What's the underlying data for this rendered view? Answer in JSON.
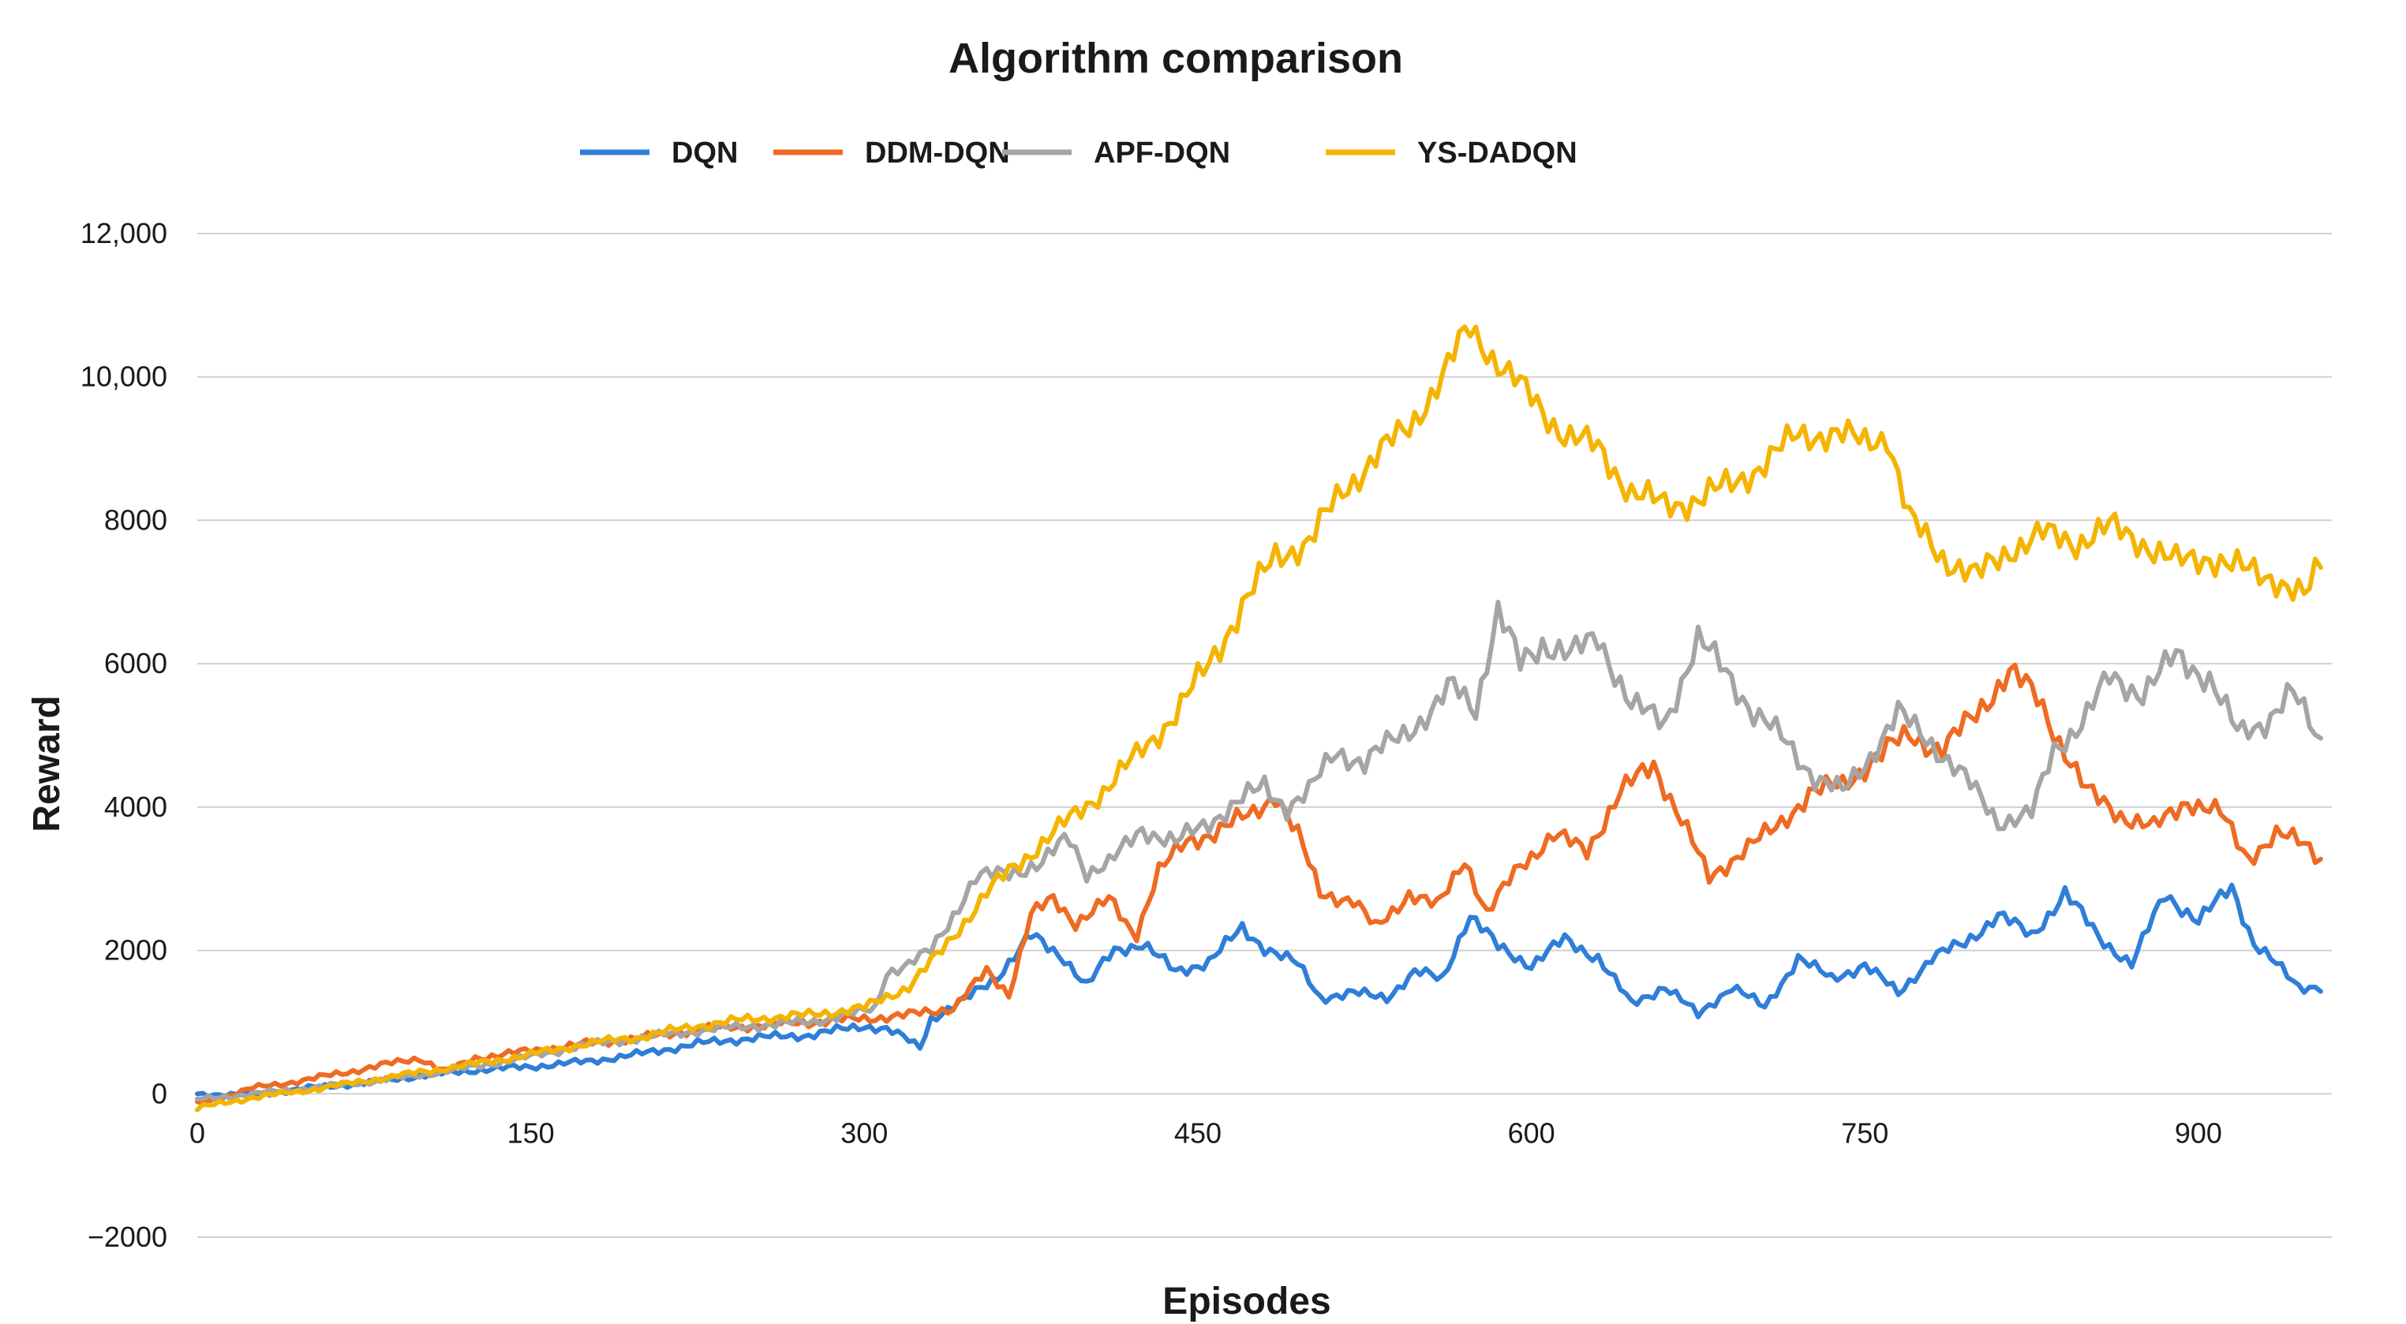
{
  "chart_data": {
    "type": "line",
    "title": "Algorithm comparison",
    "xlabel": "Episodes",
    "ylabel": "Reward",
    "xlim": [
      0,
      960
    ],
    "ylim": [
      -2000,
      12000
    ],
    "x_ticks": [
      0,
      150,
      300,
      450,
      600,
      750,
      900
    ],
    "x_tick_labels": [
      "0",
      "150",
      "300",
      "450",
      "600",
      "750",
      "900"
    ],
    "y_ticks": [
      -2000,
      0,
      2000,
      4000,
      6000,
      8000,
      10000,
      12000
    ],
    "y_tick_labels": [
      "−2000",
      "0",
      "2000",
      "4000",
      "6000",
      "8000",
      "10,000",
      "12,000"
    ],
    "grid": true,
    "legend_position": "top-center",
    "series": [
      {
        "name": "DQN",
        "color": "#2f7ed8",
        "points": [
          [
            0,
            0
          ],
          [
            25,
            -20
          ],
          [
            50,
            80
          ],
          [
            75,
            150
          ],
          [
            100,
            250
          ],
          [
            125,
            330
          ],
          [
            150,
            380
          ],
          [
            175,
            450
          ],
          [
            200,
            560
          ],
          [
            225,
            700
          ],
          [
            250,
            780
          ],
          [
            275,
            820
          ],
          [
            300,
            950
          ],
          [
            310,
            900
          ],
          [
            318,
            780
          ],
          [
            325,
            650
          ],
          [
            330,
            1050
          ],
          [
            345,
            1300
          ],
          [
            360,
            1650
          ],
          [
            375,
            2200
          ],
          [
            390,
            1900
          ],
          [
            400,
            1500
          ],
          [
            412,
            2000
          ],
          [
            425,
            2100
          ],
          [
            440,
            1700
          ],
          [
            455,
            1850
          ],
          [
            470,
            2300
          ],
          [
            480,
            2050
          ],
          [
            495,
            1800
          ],
          [
            505,
            1350
          ],
          [
            520,
            1400
          ],
          [
            535,
            1350
          ],
          [
            548,
            1700
          ],
          [
            560,
            1600
          ],
          [
            572,
            2500
          ],
          [
            585,
            2050
          ],
          [
            600,
            1800
          ],
          [
            615,
            2150
          ],
          [
            630,
            1900
          ],
          [
            645,
            1250
          ],
          [
            660,
            1500
          ],
          [
            675,
            1100
          ],
          [
            690,
            1500
          ],
          [
            705,
            1200
          ],
          [
            720,
            1900
          ],
          [
            735,
            1600
          ],
          [
            750,
            1800
          ],
          [
            765,
            1400
          ],
          [
            780,
            1900
          ],
          [
            795,
            2100
          ],
          [
            810,
            2500
          ],
          [
            825,
            2200
          ],
          [
            840,
            2800
          ],
          [
            855,
            2200
          ],
          [
            870,
            1800
          ],
          [
            885,
            2800
          ],
          [
            900,
            2400
          ],
          [
            915,
            2900
          ],
          [
            925,
            2100
          ],
          [
            935,
            1800
          ],
          [
            945,
            1500
          ],
          [
            955,
            1500
          ]
        ]
      },
      {
        "name": "DDM-DQN",
        "color": "#ee6b23",
        "points": [
          [
            0,
            -150
          ],
          [
            25,
            80
          ],
          [
            50,
            200
          ],
          [
            75,
            350
          ],
          [
            100,
            500
          ],
          [
            112,
            300
          ],
          [
            125,
            500
          ],
          [
            150,
            600
          ],
          [
            175,
            700
          ],
          [
            200,
            780
          ],
          [
            225,
            900
          ],
          [
            250,
            950
          ],
          [
            275,
            1000
          ],
          [
            300,
            1050
          ],
          [
            320,
            1100
          ],
          [
            340,
            1200
          ],
          [
            355,
            1700
          ],
          [
            365,
            1400
          ],
          [
            375,
            2500
          ],
          [
            385,
            2700
          ],
          [
            395,
            2400
          ],
          [
            410,
            2700
          ],
          [
            422,
            2200
          ],
          [
            432,
            3100
          ],
          [
            445,
            3500
          ],
          [
            460,
            3700
          ],
          [
            475,
            3900
          ],
          [
            485,
            4200
          ],
          [
            495,
            3600
          ],
          [
            505,
            2800
          ],
          [
            520,
            2700
          ],
          [
            530,
            2300
          ],
          [
            545,
            2800
          ],
          [
            558,
            2600
          ],
          [
            570,
            3300
          ],
          [
            580,
            2500
          ],
          [
            595,
            3200
          ],
          [
            610,
            3600
          ],
          [
            625,
            3400
          ],
          [
            640,
            4200
          ],
          [
            655,
            4600
          ],
          [
            668,
            3800
          ],
          [
            680,
            3000
          ],
          [
            695,
            3400
          ],
          [
            710,
            3700
          ],
          [
            725,
            4200
          ],
          [
            740,
            4300
          ],
          [
            755,
            4700
          ],
          [
            770,
            5000
          ],
          [
            785,
            4800
          ],
          [
            800,
            5300
          ],
          [
            815,
            5900
          ],
          [
            828,
            5500
          ],
          [
            838,
            4900
          ],
          [
            850,
            4200
          ],
          [
            865,
            3900
          ],
          [
            880,
            3700
          ],
          [
            895,
            4100
          ],
          [
            910,
            3900
          ],
          [
            922,
            3300
          ],
          [
            935,
            3600
          ],
          [
            948,
            3500
          ],
          [
            955,
            3300
          ]
        ]
      },
      {
        "name": "APF-DQN",
        "color": "#a5a5a5",
        "points": [
          [
            0,
            -80
          ],
          [
            25,
            0
          ],
          [
            50,
            80
          ],
          [
            75,
            160
          ],
          [
            100,
            260
          ],
          [
            125,
            380
          ],
          [
            150,
            520
          ],
          [
            175,
            680
          ],
          [
            200,
            780
          ],
          [
            225,
            880
          ],
          [
            250,
            950
          ],
          [
            275,
            1000
          ],
          [
            300,
            1150
          ],
          [
            305,
            1200
          ],
          [
            310,
            1700
          ],
          [
            320,
            1800
          ],
          [
            330,
            2000
          ],
          [
            340,
            2500
          ],
          [
            350,
            3000
          ],
          [
            365,
            3100
          ],
          [
            380,
            3200
          ],
          [
            392,
            3600
          ],
          [
            400,
            3100
          ],
          [
            410,
            3200
          ],
          [
            425,
            3700
          ],
          [
            440,
            3500
          ],
          [
            455,
            3800
          ],
          [
            470,
            4100
          ],
          [
            480,
            4300
          ],
          [
            490,
            4000
          ],
          [
            500,
            4200
          ],
          [
            512,
            4800
          ],
          [
            525,
            4600
          ],
          [
            540,
            5000
          ],
          [
            555,
            5300
          ],
          [
            565,
            5700
          ],
          [
            575,
            5400
          ],
          [
            585,
            6700
          ],
          [
            595,
            6000
          ],
          [
            605,
            6300
          ],
          [
            618,
            6100
          ],
          [
            630,
            6400
          ],
          [
            645,
            5400
          ],
          [
            660,
            5200
          ],
          [
            675,
            6300
          ],
          [
            688,
            5900
          ],
          [
            700,
            5300
          ],
          [
            715,
            4900
          ],
          [
            728,
            4400
          ],
          [
            740,
            4200
          ],
          [
            752,
            4700
          ],
          [
            765,
            5300
          ],
          [
            780,
            4900
          ],
          [
            795,
            4400
          ],
          [
            810,
            3800
          ],
          [
            825,
            3900
          ],
          [
            835,
            4800
          ],
          [
            848,
            5200
          ],
          [
            860,
            5800
          ],
          [
            875,
            5600
          ],
          [
            890,
            6100
          ],
          [
            905,
            5800
          ],
          [
            918,
            5000
          ],
          [
            930,
            5200
          ],
          [
            942,
            5600
          ],
          [
            955,
            4900
          ]
        ]
      },
      {
        "name": "YS-DADQN",
        "color": "#f4b400",
        "points": [
          [
            0,
            -200
          ],
          [
            25,
            -50
          ],
          [
            50,
            50
          ],
          [
            75,
            180
          ],
          [
            100,
            300
          ],
          [
            125,
            420
          ],
          [
            150,
            550
          ],
          [
            175,
            700
          ],
          [
            200,
            800
          ],
          [
            225,
            950
          ],
          [
            250,
            1050
          ],
          [
            275,
            1100
          ],
          [
            300,
            1200
          ],
          [
            320,
            1500
          ],
          [
            335,
            2000
          ],
          [
            345,
            2400
          ],
          [
            355,
            2800
          ],
          [
            365,
            3100
          ],
          [
            380,
            3500
          ],
          [
            395,
            3900
          ],
          [
            410,
            4300
          ],
          [
            425,
            4800
          ],
          [
            440,
            5300
          ],
          [
            455,
            6000
          ],
          [
            470,
            6800
          ],
          [
            485,
            7500
          ],
          [
            500,
            7700
          ],
          [
            515,
            8400
          ],
          [
            530,
            8900
          ],
          [
            545,
            9300
          ],
          [
            560,
            10000
          ],
          [
            572,
            10700
          ],
          [
            585,
            10200
          ],
          [
            600,
            9700
          ],
          [
            615,
            9200
          ],
          [
            630,
            9000
          ],
          [
            645,
            8400
          ],
          [
            660,
            8200
          ],
          [
            675,
            8300
          ],
          [
            690,
            8500
          ],
          [
            705,
            8800
          ],
          [
            720,
            9200
          ],
          [
            735,
            9200
          ],
          [
            750,
            9100
          ],
          [
            760,
            9200
          ],
          [
            770,
            8000
          ],
          [
            785,
            7500
          ],
          [
            800,
            7200
          ],
          [
            815,
            7600
          ],
          [
            830,
            7800
          ],
          [
            845,
            7700
          ],
          [
            860,
            7900
          ],
          [
            875,
            7700
          ],
          [
            890,
            7400
          ],
          [
            905,
            7500
          ],
          [
            920,
            7300
          ],
          [
            935,
            7200
          ],
          [
            948,
            6900
          ],
          [
            955,
            7400
          ]
        ]
      }
    ]
  }
}
